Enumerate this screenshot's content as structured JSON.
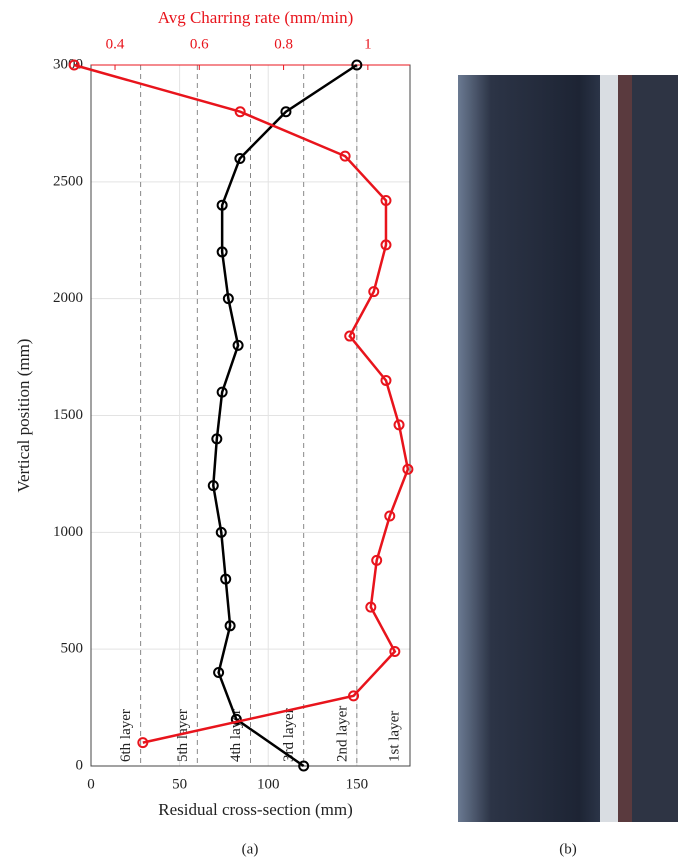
{
  "chart_data": {
    "type": "line",
    "x2label": "Avg Charring rate (mm/min)",
    "xlabel": "Residual cross-section (mm)",
    "ylabel": "Vertical position (mm)",
    "xlim": [
      0,
      180
    ],
    "xticks": [
      0,
      50,
      100,
      150
    ],
    "x2lim": [
      0.343,
      1.1
    ],
    "x2ticks": [
      0.4,
      0.6,
      0.8,
      1
    ],
    "ylim": [
      0,
      3000
    ],
    "yticks": [
      0,
      500,
      1000,
      1500,
      2000,
      2500,
      3000
    ],
    "grid": true,
    "series": [
      {
        "color": "#000000",
        "values": [
          150,
          110,
          84,
          74,
          74,
          77.5,
          83,
          74,
          71,
          69,
          73.5,
          76,
          78.5,
          72,
          82,
          120
        ],
        "y": [
          3000,
          2800,
          2600,
          2400,
          2200,
          2000,
          1800,
          1600,
          1400,
          1200,
          1000,
          800,
          600,
          400,
          200,
          0
        ]
      },
      {
        "color": "#e8141c",
        "axis": "x2",
        "values": [
          0.303,
          0.697,
          0.946,
          1.043,
          1.043,
          1.014,
          0.957,
          1.043,
          1.074,
          1.095,
          1.052,
          1.021,
          1.007,
          1.064,
          0.966,
          0.466
        ],
        "y": [
          3000,
          2800,
          2610,
          2420,
          2230,
          2030,
          1840,
          1650,
          1460,
          1270,
          1070,
          880,
          680,
          490,
          300,
          100
        ]
      }
    ],
    "layer_boundaries": [
      28,
      60,
      90,
      120,
      150
    ],
    "layer_labels": [
      "6th layer",
      "5th layer",
      "4th layer",
      "3rd layer",
      "2nd layer",
      "1st layer"
    ],
    "captions": [
      "(a)",
      "(b)"
    ]
  }
}
